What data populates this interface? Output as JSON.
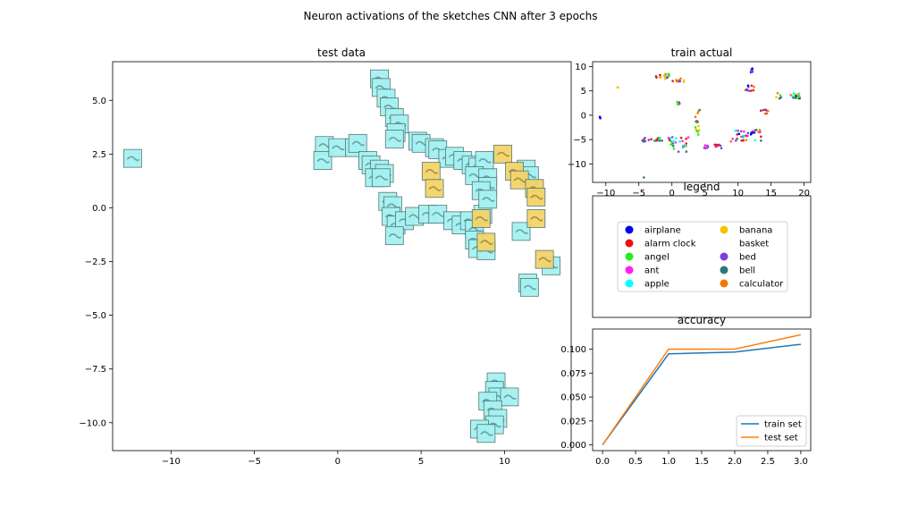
{
  "figure": {
    "suptitle": "Neuron activations of the sketches CNN after 3 epochs"
  },
  "colors": {
    "airplane": "#0000ee",
    "alarm_clock": "#ee1111",
    "angel": "#22ee22",
    "ant": "#ff22ee",
    "apple": "#00ffff",
    "banana": "#f5c400",
    "bed": "#7b3fe0",
    "bell": "#2a7a78",
    "calculator": "#f07800",
    "sketch_blue": "#a6f2f2",
    "sketch_yellow": "#f3d46a",
    "train_line": "#1f77b4",
    "test_line": "#ff7f0e"
  },
  "chart_data": [
    {
      "type": "scatter",
      "title": "test data",
      "xlim": [
        -13.5,
        14
      ],
      "ylim": [
        -11.3,
        6.8
      ],
      "xticks": [
        -10,
        -5,
        0,
        5,
        10
      ],
      "xtick_labels": [
        "−10",
        "−5",
        "0",
        "5",
        "10"
      ],
      "yticks": [
        5.0,
        2.5,
        0.0,
        -2.5,
        -5.0,
        -7.5,
        -10.0
      ],
      "ytick_labels": [
        "5.0",
        "2.5",
        "0.0",
        "−2.5",
        "−5.0",
        "−7.5",
        "−10.0"
      ],
      "points": [
        {
          "x": -12.3,
          "y": 2.3,
          "c": "sketch_blue"
        },
        {
          "x": -0.8,
          "y": 2.9,
          "c": "sketch_blue"
        },
        {
          "x": -0.9,
          "y": 2.2,
          "c": "sketch_blue"
        },
        {
          "x": 0.0,
          "y": 2.8,
          "c": "sketch_blue"
        },
        {
          "x": 1.0,
          "y": 2.8,
          "c": "sketch_blue"
        },
        {
          "x": 1.2,
          "y": 3.0,
          "c": "sketch_blue"
        },
        {
          "x": 1.8,
          "y": 2.2,
          "c": "sketch_blue"
        },
        {
          "x": 2.0,
          "y": 2.0,
          "c": "sketch_blue"
        },
        {
          "x": 2.5,
          "y": 1.8,
          "c": "sketch_blue"
        },
        {
          "x": 2.2,
          "y": 1.4,
          "c": "sketch_blue"
        },
        {
          "x": 2.8,
          "y": 1.6,
          "c": "sketch_blue"
        },
        {
          "x": 2.6,
          "y": 1.4,
          "c": "sketch_blue"
        },
        {
          "x": 2.5,
          "y": 6.0,
          "c": "sketch_blue"
        },
        {
          "x": 2.6,
          "y": 5.6,
          "c": "sketch_blue"
        },
        {
          "x": 2.9,
          "y": 5.1,
          "c": "sketch_blue"
        },
        {
          "x": 3.1,
          "y": 4.7,
          "c": "sketch_blue"
        },
        {
          "x": 3.4,
          "y": 4.2,
          "c": "sketch_blue"
        },
        {
          "x": 3.7,
          "y": 3.9,
          "c": "sketch_blue"
        },
        {
          "x": 3.5,
          "y": 3.5,
          "c": "sketch_blue"
        },
        {
          "x": 3.4,
          "y": 3.2,
          "c": "sketch_blue"
        },
        {
          "x": 4.8,
          "y": 3.1,
          "c": "sketch_blue"
        },
        {
          "x": 5.0,
          "y": 3.0,
          "c": "sketch_blue"
        },
        {
          "x": 5.8,
          "y": 2.8,
          "c": "sketch_blue"
        },
        {
          "x": 6.0,
          "y": 2.7,
          "c": "sketch_blue"
        },
        {
          "x": 6.6,
          "y": 2.3,
          "c": "sketch_blue"
        },
        {
          "x": 7.0,
          "y": 2.4,
          "c": "sketch_blue"
        },
        {
          "x": 7.5,
          "y": 2.2,
          "c": "sketch_blue"
        },
        {
          "x": 8.0,
          "y": 2.0,
          "c": "sketch_blue"
        },
        {
          "x": 8.4,
          "y": 1.9,
          "c": "sketch_blue"
        },
        {
          "x": 8.8,
          "y": 2.2,
          "c": "sketch_blue"
        },
        {
          "x": 8.2,
          "y": 1.5,
          "c": "sketch_blue"
        },
        {
          "x": 9.0,
          "y": 1.4,
          "c": "sketch_blue"
        },
        {
          "x": 9.0,
          "y": 1.0,
          "c": "sketch_blue"
        },
        {
          "x": 8.6,
          "y": 0.8,
          "c": "sketch_blue"
        },
        {
          "x": 11.3,
          "y": 1.8,
          "c": "sketch_blue"
        },
        {
          "x": 11.5,
          "y": 1.5,
          "c": "sketch_blue"
        },
        {
          "x": 3.0,
          "y": 0.3,
          "c": "sketch_blue"
        },
        {
          "x": 3.3,
          "y": 0.1,
          "c": "sketch_blue"
        },
        {
          "x": 3.2,
          "y": -0.4,
          "c": "sketch_blue"
        },
        {
          "x": 3.5,
          "y": -0.8,
          "c": "sketch_blue"
        },
        {
          "x": 4.0,
          "y": -0.6,
          "c": "sketch_blue"
        },
        {
          "x": 4.6,
          "y": -0.4,
          "c": "sketch_blue"
        },
        {
          "x": 5.4,
          "y": -0.3,
          "c": "sketch_blue"
        },
        {
          "x": 6.0,
          "y": -0.3,
          "c": "sketch_blue"
        },
        {
          "x": 6.9,
          "y": -0.6,
          "c": "sketch_blue"
        },
        {
          "x": 7.4,
          "y": -0.8,
          "c": "sketch_blue"
        },
        {
          "x": 7.9,
          "y": -0.6,
          "c": "sketch_blue"
        },
        {
          "x": 8.2,
          "y": -1.0,
          "c": "sketch_blue"
        },
        {
          "x": 8.7,
          "y": -0.3,
          "c": "sketch_blue"
        },
        {
          "x": 9.0,
          "y": 0.4,
          "c": "sketch_blue"
        },
        {
          "x": 8.2,
          "y": -1.5,
          "c": "sketch_blue"
        },
        {
          "x": 8.4,
          "y": -1.9,
          "c": "sketch_blue"
        },
        {
          "x": 8.9,
          "y": -2.0,
          "c": "sketch_blue"
        },
        {
          "x": 11.0,
          "y": -1.1,
          "c": "sketch_blue"
        },
        {
          "x": 3.4,
          "y": -1.3,
          "c": "sketch_blue"
        },
        {
          "x": 12.8,
          "y": -2.7,
          "c": "sketch_blue"
        },
        {
          "x": 11.4,
          "y": -3.5,
          "c": "sketch_blue"
        },
        {
          "x": 11.5,
          "y": -3.7,
          "c": "sketch_blue"
        },
        {
          "x": 9.5,
          "y": -8.1,
          "c": "sketch_blue"
        },
        {
          "x": 9.4,
          "y": -8.5,
          "c": "sketch_blue"
        },
        {
          "x": 9.6,
          "y": -8.8,
          "c": "sketch_blue"
        },
        {
          "x": 10.3,
          "y": -8.8,
          "c": "sketch_blue"
        },
        {
          "x": 9.0,
          "y": -9.0,
          "c": "sketch_blue"
        },
        {
          "x": 9.3,
          "y": -9.4,
          "c": "sketch_blue"
        },
        {
          "x": 9.6,
          "y": -9.8,
          "c": "sketch_blue"
        },
        {
          "x": 9.4,
          "y": -10.1,
          "c": "sketch_blue"
        },
        {
          "x": 8.5,
          "y": -10.3,
          "c": "sketch_blue"
        },
        {
          "x": 8.9,
          "y": -10.5,
          "c": "sketch_blue"
        },
        {
          "x": 9.9,
          "y": 2.5,
          "c": "sketch_yellow"
        },
        {
          "x": 5.6,
          "y": 1.7,
          "c": "sketch_yellow"
        },
        {
          "x": 5.8,
          "y": 0.9,
          "c": "sketch_yellow"
        },
        {
          "x": 10.6,
          "y": 1.7,
          "c": "sketch_yellow"
        },
        {
          "x": 10.9,
          "y": 1.3,
          "c": "sketch_yellow"
        },
        {
          "x": 11.8,
          "y": 0.9,
          "c": "sketch_yellow"
        },
        {
          "x": 11.9,
          "y": 0.5,
          "c": "sketch_yellow"
        },
        {
          "x": 11.9,
          "y": -0.5,
          "c": "sketch_yellow"
        },
        {
          "x": 8.6,
          "y": -0.5,
          "c": "sketch_yellow"
        },
        {
          "x": 8.9,
          "y": -1.6,
          "c": "sketch_yellow"
        },
        {
          "x": 12.4,
          "y": -2.4,
          "c": "sketch_yellow"
        }
      ]
    },
    {
      "type": "scatter",
      "title": "train actual",
      "xlim": [
        -12,
        21
      ],
      "ylim": [
        -13.8,
        11
      ],
      "xticks": [
        -10,
        -5,
        0,
        5,
        10,
        15,
        20
      ],
      "xtick_labels": [
        "−10",
        "−5",
        "0",
        "5",
        "10",
        "15",
        "20"
      ],
      "yticks": [
        10,
        5,
        0,
        -5,
        -10
      ],
      "ytick_labels": [
        "10",
        "5",
        "0",
        "−5",
        "−10"
      ],
      "clusters": [
        {
          "x": -10.8,
          "y": -0.5,
          "spread": [
            0.1,
            0.2
          ],
          "n": 2,
          "c": [
            "airplane"
          ]
        },
        {
          "x": -8.2,
          "y": 5.7,
          "spread": [
            0.1,
            0.1
          ],
          "n": 2,
          "c": [
            "banana"
          ]
        },
        {
          "x": -4.3,
          "y": -12.8,
          "spread": [
            0.1,
            0.1
          ],
          "n": 1,
          "c": [
            "bell"
          ]
        },
        {
          "x": -1.5,
          "y": 8.0,
          "spread": [
            1.2,
            0.6
          ],
          "n": 16,
          "c": [
            "calculator",
            "bed",
            "alarm_clock",
            "banana",
            "angel"
          ]
        },
        {
          "x": 1.0,
          "y": 7.2,
          "spread": [
            1.0,
            0.4
          ],
          "n": 12,
          "c": [
            "alarm_clock",
            "calculator",
            "bed",
            "banana"
          ]
        },
        {
          "x": 0.8,
          "y": 2.5,
          "spread": [
            0.4,
            0.6
          ],
          "n": 6,
          "c": [
            "bed",
            "calculator",
            "angel"
          ]
        },
        {
          "x": -3.0,
          "y": -5.0,
          "spread": [
            1.5,
            0.4
          ],
          "n": 18,
          "c": [
            "bed",
            "bell",
            "angel",
            "alarm_clock"
          ]
        },
        {
          "x": 1.0,
          "y": -6.0,
          "spread": [
            1.5,
            1.6
          ],
          "n": 25,
          "c": [
            "apple",
            "angel",
            "bell",
            "alarm_clock",
            "ant",
            "bed"
          ]
        },
        {
          "x": 3.8,
          "y": -1.5,
          "spread": [
            0.4,
            2.6
          ],
          "n": 16,
          "c": [
            "angel",
            "bell",
            "calculator",
            "banana"
          ]
        },
        {
          "x": 6.2,
          "y": -6.4,
          "spread": [
            1.4,
            0.4
          ],
          "n": 14,
          "c": [
            "bed",
            "ant",
            "alarm_clock",
            "bell"
          ]
        },
        {
          "x": 11.2,
          "y": -4.2,
          "spread": [
            2.3,
            1.2
          ],
          "n": 35,
          "c": [
            "alarm_clock",
            "bed",
            "airplane",
            "ant",
            "bell",
            "apple",
            "calculator"
          ]
        },
        {
          "x": 12.0,
          "y": 9.2,
          "spread": [
            0.2,
            0.6
          ],
          "n": 8,
          "c": [
            "bed",
            "airplane"
          ]
        },
        {
          "x": 11.8,
          "y": 5.6,
          "spread": [
            0.7,
            0.6
          ],
          "n": 10,
          "c": [
            "bed",
            "alarm_clock",
            "airplane",
            "calculator"
          ]
        },
        {
          "x": 14.0,
          "y": 0.8,
          "spread": [
            0.6,
            0.6
          ],
          "n": 8,
          "c": [
            "calculator",
            "alarm_clock",
            "bed"
          ]
        },
        {
          "x": 17.5,
          "y": 4.0,
          "spread": [
            2.0,
            0.6
          ],
          "n": 20,
          "c": [
            "angel",
            "bell",
            "calculator",
            "airplane",
            "banana",
            "apple"
          ]
        }
      ]
    },
    {
      "type": "legend",
      "title": "legend",
      "entries": [
        {
          "label": "airplane",
          "c": "airplane"
        },
        {
          "label": "alarm clock",
          "c": "alarm_clock"
        },
        {
          "label": "angel",
          "c": "angel"
        },
        {
          "label": "ant",
          "c": "ant"
        },
        {
          "label": "apple",
          "c": "apple"
        },
        {
          "label": "banana",
          "c": "banana"
        },
        {
          "label": "basket",
          "c": "none"
        },
        {
          "label": "bed",
          "c": "bed"
        },
        {
          "label": "bell",
          "c": "bell"
        },
        {
          "label": "calculator",
          "c": "calculator"
        }
      ]
    },
    {
      "type": "line",
      "title": "accuracy",
      "xlim": [
        -0.15,
        3.15
      ],
      "ylim": [
        -0.006,
        0.121
      ],
      "xticks": [
        0.0,
        0.5,
        1.0,
        1.5,
        2.0,
        2.5,
        3.0
      ],
      "xtick_labels": [
        "0.0",
        "0.5",
        "1.0",
        "1.5",
        "2.0",
        "2.5",
        "3.0"
      ],
      "yticks": [
        0.0,
        0.025,
        0.05,
        0.075,
        0.1
      ],
      "ytick_labels": [
        "0.000",
        "0.025",
        "0.050",
        "0.075",
        "0.100"
      ],
      "x": [
        0,
        1,
        2,
        3
      ],
      "legend_position": "lower right",
      "series": [
        {
          "name": "train set",
          "values": [
            0.0,
            0.095,
            0.097,
            0.105
          ],
          "c": "train_line"
        },
        {
          "name": "test set",
          "values": [
            0.0,
            0.1,
            0.1,
            0.115
          ],
          "c": "test_line"
        }
      ]
    }
  ]
}
